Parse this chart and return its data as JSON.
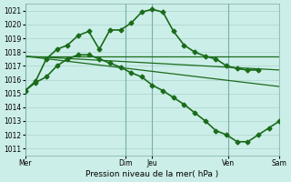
{
  "xlabel": "Pression niveau de la mer( hPa )",
  "bg_color": "#cceee8",
  "grid_color": "#aad4ce",
  "line_color": "#1a6b1a",
  "xlim": [
    0,
    24
  ],
  "ylim": [
    1010.5,
    1021.5
  ],
  "yticks": [
    1011,
    1012,
    1013,
    1014,
    1015,
    1016,
    1017,
    1018,
    1019,
    1020,
    1021
  ],
  "day_positions": [
    0,
    9.5,
    12,
    19.2,
    24
  ],
  "day_labels": [
    "Mer",
    "Dim",
    "Jeu",
    "Ven",
    "Sam"
  ],
  "vline_positions": [
    0,
    9.5,
    12,
    19.2,
    24
  ],
  "trend1_x": [
    0,
    24
  ],
  "trend1_y": [
    1017.7,
    1017.7
  ],
  "trend2_x": [
    0,
    24
  ],
  "trend2_y": [
    1017.7,
    1016.7
  ],
  "trend3_x": [
    0,
    24
  ],
  "trend3_y": [
    1017.7,
    1015.5
  ],
  "upper_x": [
    0,
    1,
    2,
    3,
    4,
    5,
    6,
    7,
    8,
    9,
    10,
    11,
    12,
    13,
    14,
    15,
    16,
    17,
    18,
    19,
    20,
    21,
    22
  ],
  "upper_y": [
    1015.2,
    1015.9,
    1017.5,
    1018.2,
    1018.5,
    1019.2,
    1019.5,
    1018.2,
    1019.6,
    1019.6,
    1020.1,
    1020.9,
    1021.1,
    1020.9,
    1019.5,
    1018.5,
    1018.0,
    1017.7,
    1017.5,
    1017.0,
    1016.8,
    1016.7,
    1016.7
  ],
  "lower_x": [
    0,
    1,
    2,
    3,
    4,
    5,
    6,
    7,
    8,
    9,
    10,
    11,
    12,
    13,
    14,
    15,
    16,
    17,
    18,
    19,
    20,
    21,
    22,
    23,
    24
  ],
  "lower_y": [
    1015.2,
    1015.8,
    1016.2,
    1017.0,
    1017.5,
    1017.8,
    1017.8,
    1017.5,
    1017.2,
    1016.9,
    1016.5,
    1016.2,
    1015.6,
    1015.2,
    1014.7,
    1014.2,
    1013.6,
    1013.0,
    1012.3,
    1012.0,
    1011.5,
    1011.5,
    1012.0,
    1012.5,
    1013.0
  ]
}
